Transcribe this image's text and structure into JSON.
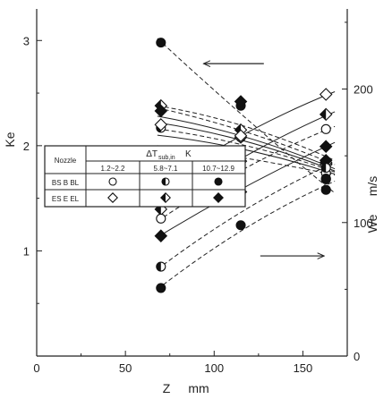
{
  "chart_data": {
    "type": "scatter",
    "title": "",
    "xlabel": "Z",
    "xunit": "mm",
    "ylabel_left": "Ke",
    "ylabel_right": "We",
    "yunit_right": "m/s",
    "xlim": [
      0,
      175
    ],
    "ylim_left": [
      0,
      3.3
    ],
    "ylim_right": [
      0,
      260
    ],
    "x_ticks": [
      "0",
      "50",
      "100",
      "150"
    ],
    "y_left_ticks": [
      "1",
      "2",
      "3"
    ],
    "y_right_ticks": [
      "0",
      "100",
      "200"
    ],
    "legend": {
      "header_nozzle": "Nozzle",
      "header_delta": "ΔT",
      "header_delta_sub": "sub,in",
      "header_unit": "K",
      "ranges": [
        "1.2~2.2",
        "5.8~7.1",
        "10.7~12.9"
      ],
      "rows": [
        "BS B BL",
        "ES E EL"
      ]
    },
    "series": [
      {
        "axis": "left",
        "marker": "circle",
        "fill": "open",
        "nozzle": 0,
        "range": 0,
        "x": [
          70,
          115,
          163
        ],
        "y": [
          1.92,
          1.94,
          1.74
        ]
      },
      {
        "axis": "left",
        "marker": "circle",
        "fill": "half",
        "nozzle": 0,
        "range": 1,
        "x": [
          70,
          115,
          163
        ],
        "y": [
          2.17,
          2.08,
          1.68
        ]
      },
      {
        "axis": "left",
        "marker": "circle",
        "fill": "filled",
        "nozzle": 0,
        "range": 2,
        "x": [
          70,
          115,
          163
        ],
        "y": [
          2.98,
          2.38,
          1.58
        ]
      },
      {
        "axis": "left",
        "marker": "diamond",
        "fill": "open",
        "nozzle": 1,
        "range": 0,
        "x": [
          70,
          115,
          163
        ],
        "y": [
          2.2,
          2.08,
          1.82
        ]
      },
      {
        "axis": "left",
        "marker": "diamond",
        "fill": "half",
        "nozzle": 1,
        "range": 1,
        "x": [
          70,
          115,
          163
        ],
        "y": [
          2.38,
          2.15,
          1.84
        ]
      },
      {
        "axis": "left",
        "marker": "diamond",
        "fill": "filled",
        "nozzle": 1,
        "range": 2,
        "x": [
          70,
          115,
          163
        ],
        "y": [
          2.33,
          2.42,
          1.86
        ]
      },
      {
        "axis": "right",
        "marker": "diamond",
        "fill": "open",
        "nozzle": 1,
        "range": 0,
        "x": [
          70,
          115,
          163
        ],
        "y": [
          129,
          165,
          196
        ]
      },
      {
        "axis": "right",
        "marker": "diamond",
        "fill": "half",
        "nozzle": 1,
        "range": 1,
        "x": [
          70,
          115,
          163
        ],
        "y": [
          110,
          146,
          181
        ]
      },
      {
        "axis": "right",
        "marker": "circle",
        "fill": "open",
        "nozzle": 0,
        "range": 0,
        "x": [
          70,
          115,
          163
        ],
        "y": [
          103,
          142,
          170
        ]
      },
      {
        "axis": "right",
        "marker": "diamond",
        "fill": "filled",
        "nozzle": 1,
        "range": 2,
        "x": [
          70,
          115,
          163
        ],
        "y": [
          90,
          123,
          157
        ]
      },
      {
        "axis": "right",
        "marker": "circle",
        "fill": "half",
        "nozzle": 0,
        "range": 1,
        "x": [
          70,
          115,
          163
        ],
        "y": [
          67,
          118,
          141
        ]
      },
      {
        "axis": "right",
        "marker": "circle",
        "fill": "filled",
        "nozzle": 0,
        "range": 2,
        "x": [
          70,
          115,
          163
        ],
        "y": [
          51,
          98,
          133
        ]
      }
    ],
    "curves": [
      {
        "axis": "left",
        "style": "dashed",
        "x": [
          68,
          118,
          168
        ],
        "y": [
          2.0,
          1.88,
          1.72
        ]
      },
      {
        "axis": "left",
        "style": "solid",
        "x": [
          68,
          118,
          168
        ],
        "y": [
          2.1,
          1.96,
          1.73
        ]
      },
      {
        "axis": "left",
        "style": "dashed",
        "x": [
          68,
          118,
          168
        ],
        "y": [
          2.16,
          2.0,
          1.75
        ]
      },
      {
        "axis": "left",
        "style": "solid",
        "x": [
          68,
          118,
          168
        ],
        "y": [
          2.22,
          2.04,
          1.76
        ]
      },
      {
        "axis": "left",
        "style": "solid",
        "x": [
          68,
          118,
          168
        ],
        "y": [
          2.28,
          2.08,
          1.78
        ]
      },
      {
        "axis": "left",
        "style": "dashed",
        "x": [
          68,
          118,
          168
        ],
        "y": [
          2.36,
          2.13,
          1.82
        ]
      },
      {
        "axis": "left",
        "style": "dashed",
        "x": [
          68,
          118,
          168
        ],
        "y": [
          2.38,
          2.18,
          1.86
        ]
      },
      {
        "axis": "left",
        "style": "dashed",
        "x": [
          68,
          118,
          168
        ],
        "y": [
          3.02,
          2.26,
          1.55
        ]
      },
      {
        "axis": "right",
        "style": "solid",
        "x": [
          68,
          118,
          168
        ],
        "y": [
          127,
          167,
          198
        ]
      },
      {
        "axis": "right",
        "style": "solid",
        "x": [
          68,
          118,
          168
        ],
        "y": [
          109,
          150,
          183
        ]
      },
      {
        "axis": "right",
        "style": "dashed",
        "x": [
          68,
          118,
          168
        ],
        "y": [
          101,
          141,
          172
        ]
      },
      {
        "axis": "right",
        "style": "solid",
        "x": [
          68,
          118,
          168
        ],
        "y": [
          89,
          127,
          160
        ]
      },
      {
        "axis": "right",
        "style": "dashed",
        "x": [
          68,
          118,
          168
        ],
        "y": [
          65,
          110,
          145
        ]
      },
      {
        "axis": "right",
        "style": "dashed",
        "x": [
          68,
          118,
          168
        ],
        "y": [
          50,
          96,
          131
        ]
      }
    ],
    "arrows": [
      {
        "axis": "left",
        "direction": "left",
        "x": [
          128,
          94
        ],
        "y": 2.78
      },
      {
        "axis": "right",
        "direction": "right",
        "x": [
          126,
          162
        ],
        "y": 75
      }
    ]
  }
}
